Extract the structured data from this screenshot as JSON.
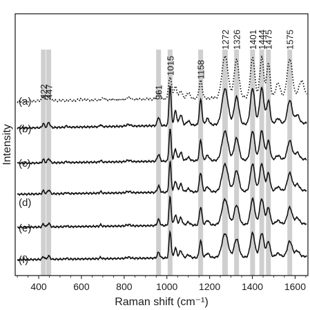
{
  "chart_data": {
    "type": "line",
    "xlabel": "Raman shift (cm⁻¹)",
    "ylabel": "Intensity",
    "xlim": [
      290,
      1660
    ],
    "x_ticks": [
      "400",
      "600",
      "800",
      "1000",
      "1200",
      "1400",
      "1600"
    ],
    "y_ticks_shown": false,
    "grid": false,
    "highlight_color": "#cfcfcf",
    "line_color": "#111111",
    "peaks": [
      {
        "value": 422,
        "label": "422"
      },
      {
        "value": 447,
        "label": "447"
      },
      {
        "value": 961,
        "label": "961"
      },
      {
        "value": 1015,
        "label": "1015"
      },
      {
        "value": 1158,
        "label": "1158"
      },
      {
        "value": 1272,
        "label": "1272"
      },
      {
        "value": 1326,
        "label": "1326"
      },
      {
        "value": 1401,
        "label": "1401"
      },
      {
        "value": 1444,
        "label": "1444"
      },
      {
        "value": 1475,
        "label": "1475"
      },
      {
        "value": 1575,
        "label": "1575"
      }
    ],
    "series": [
      {
        "label": "(a)",
        "style": "dotted",
        "baseline": 5.0
      },
      {
        "label": "(b)",
        "style": "solid",
        "baseline": 4.0
      },
      {
        "label": "(c)",
        "style": "solid",
        "baseline": 3.0
      },
      {
        "label": "(d)",
        "style": "solid",
        "baseline": 2.0
      },
      {
        "label": "(e)",
        "style": "solid",
        "baseline": 1.0
      },
      {
        "label": "(f)",
        "style": "solid",
        "baseline": 0.0
      }
    ]
  }
}
